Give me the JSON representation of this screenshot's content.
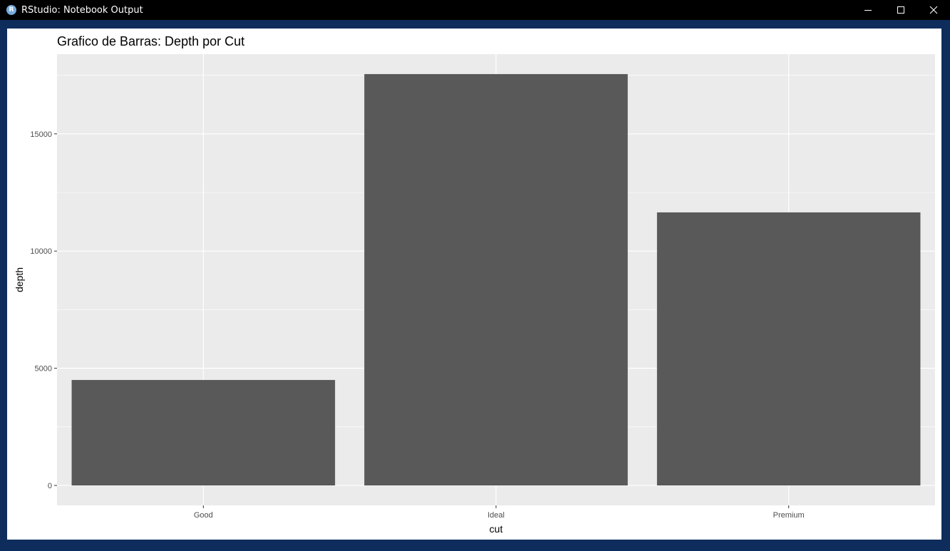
{
  "window": {
    "title": "RStudio: Notebook Output",
    "icon": "r-logo-icon",
    "icon_letter": "R"
  },
  "colors": {
    "panel_bg": "#EBEBEB",
    "grid": "#FFFFFF",
    "bar": "#595959",
    "text": "#000000",
    "tick_text": "#4D4D4D"
  },
  "chart_data": {
    "type": "bar",
    "title": "Grafico de Barras: Depth por Cut",
    "xlabel": "cut",
    "ylabel": "depth",
    "categories": [
      "Good",
      "Ideal",
      "Premium"
    ],
    "values": [
      4500,
      17550,
      11650
    ],
    "ylim": [
      -850,
      18400
    ],
    "yticks": [
      0,
      5000,
      10000,
      15000
    ],
    "ytick_labels": [
      "0",
      "5000",
      "10000",
      "15000"
    ],
    "grid": true,
    "legend": "none"
  }
}
